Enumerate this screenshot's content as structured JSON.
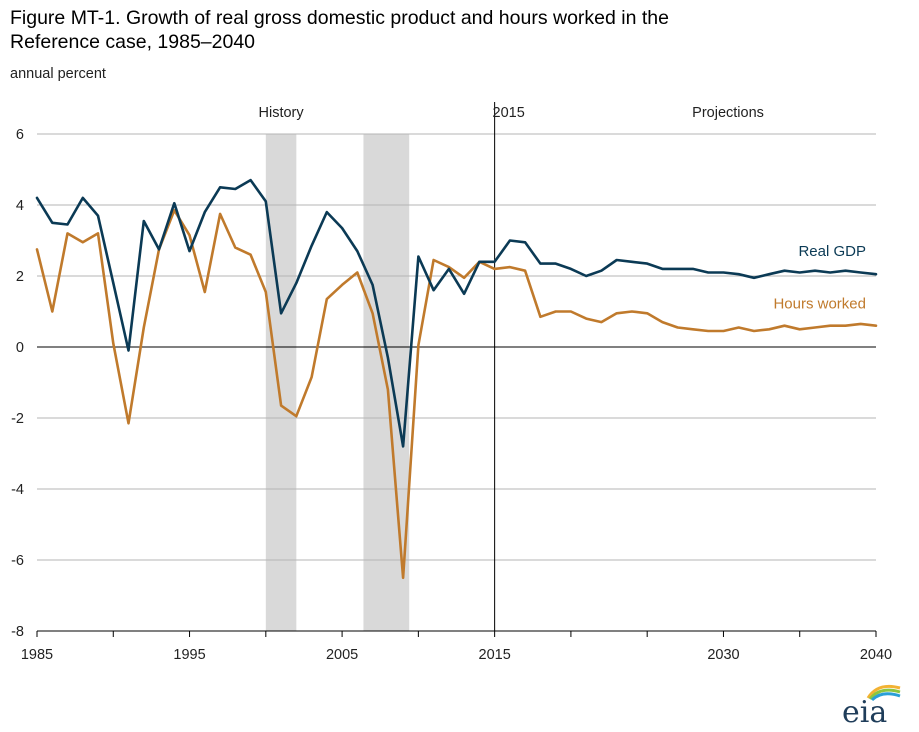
{
  "title_line1": "Figure MT-1. Growth of real gross domestic product and hours worked in the",
  "title_line2": "Reference case, 1985–2040",
  "unit_label": "annual percent",
  "annotations": {
    "history": "History",
    "year_2015": "2015",
    "projections": "Projections"
  },
  "logo_text": "eia",
  "colors": {
    "gdp": "#0b3a55",
    "hours": "#c07a2c",
    "recession": "#d9d9d9",
    "grid": "#b5b5b5",
    "logo_text": "#1f3d5a"
  },
  "chart_data": {
    "type": "line",
    "title": "Figure MT-1. Growth of real gross domestic product and hours worked in the Reference case, 1985–2040",
    "ylabel": "annual percent",
    "xlim": [
      1985,
      2040
    ],
    "ylim": [
      -8,
      6
    ],
    "yticks": [
      6,
      4,
      2,
      0,
      -2,
      -4,
      -6,
      -8
    ],
    "xtick_labels": [
      1985,
      1995,
      2005,
      2015,
      2030,
      2040
    ],
    "grid": true,
    "recession_bands": [
      [
        2000.0,
        2002.0
      ],
      [
        2006.4,
        2009.4
      ]
    ],
    "divider_year": 2015,
    "x": [
      1985,
      1986,
      1987,
      1988,
      1989,
      1990,
      1991,
      1992,
      1993,
      1994,
      1995,
      1996,
      1997,
      1998,
      1999,
      2000,
      2001,
      2002,
      2003,
      2004,
      2005,
      2006,
      2007,
      2008,
      2009,
      2010,
      2011,
      2012,
      2013,
      2014,
      2015,
      2016,
      2017,
      2018,
      2019,
      2020,
      2021,
      2022,
      2023,
      2024,
      2025,
      2026,
      2027,
      2028,
      2029,
      2030,
      2031,
      2032,
      2033,
      2034,
      2035,
      2036,
      2037,
      2038,
      2039,
      2040
    ],
    "series": [
      {
        "name": "Real GDP",
        "values": [
          4.2,
          3.5,
          3.45,
          4.2,
          3.7,
          1.8,
          -0.1,
          3.55,
          2.75,
          4.05,
          2.7,
          3.8,
          4.5,
          4.45,
          4.7,
          4.1,
          0.95,
          1.8,
          2.85,
          3.8,
          3.35,
          2.7,
          1.75,
          -0.3,
          -2.8,
          2.55,
          1.6,
          2.2,
          1.5,
          2.4,
          2.4,
          3.0,
          2.95,
          2.35,
          2.35,
          2.2,
          2.0,
          2.15,
          2.45,
          2.4,
          2.35,
          2.2,
          2.2,
          2.2,
          2.1,
          2.1,
          2.05,
          1.95,
          2.05,
          2.15,
          2.1,
          2.15,
          2.1,
          2.15,
          2.1,
          2.05
        ]
      },
      {
        "name": "Hours worked",
        "values": [
          2.75,
          1.0,
          3.2,
          2.95,
          3.2,
          0.1,
          -2.15,
          0.55,
          2.75,
          3.85,
          3.15,
          1.55,
          3.75,
          2.8,
          2.6,
          1.55,
          -1.65,
          -1.95,
          -0.85,
          1.35,
          1.75,
          2.1,
          0.95,
          -1.2,
          -6.5,
          0.05,
          2.45,
          2.25,
          1.95,
          2.4,
          2.2,
          2.25,
          2.15,
          0.85,
          1.0,
          1.0,
          0.8,
          0.7,
          0.95,
          1.0,
          0.95,
          0.7,
          0.55,
          0.5,
          0.45,
          0.45,
          0.55,
          0.45,
          0.5,
          0.6,
          0.5,
          0.55,
          0.6,
          0.6,
          0.65,
          0.6
        ]
      }
    ]
  }
}
